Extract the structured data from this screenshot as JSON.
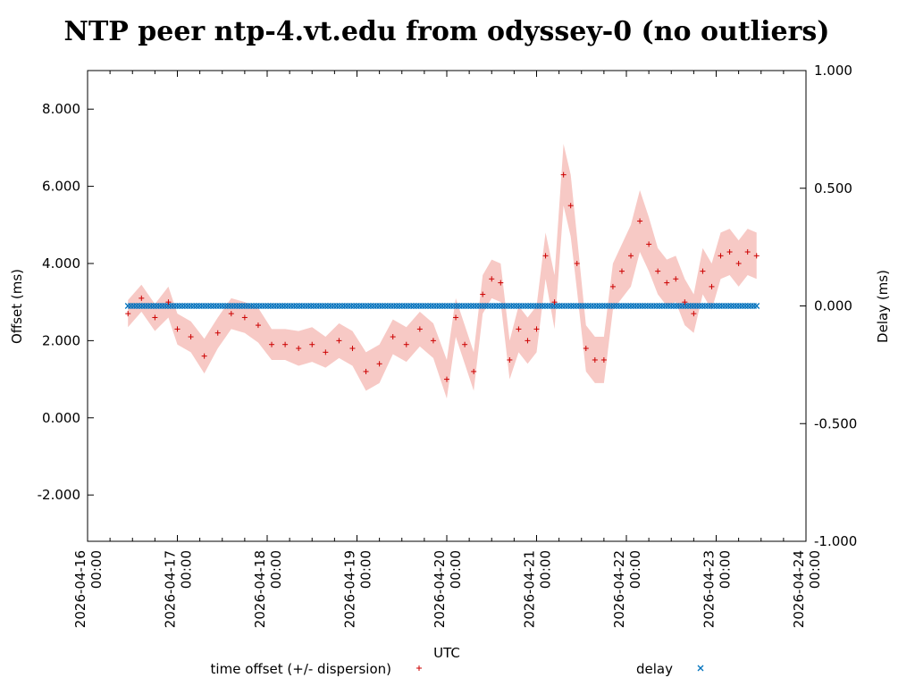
{
  "chart_data": {
    "type": "scatter",
    "title": "NTP peer ntp-4.vt.edu from odyssey-0 (no outliers)",
    "xlabel": "UTC",
    "ylabel": "Offset (ms)",
    "y2label": "Delay (ms)",
    "xlim_days": [
      0,
      8
    ],
    "x_ticks": [
      {
        "day": 0,
        "date": "2026-04-16",
        "time": "00:00"
      },
      {
        "day": 1,
        "date": "2026-04-17",
        "time": "00:00"
      },
      {
        "day": 2,
        "date": "2026-04-18",
        "time": "00:00"
      },
      {
        "day": 3,
        "date": "2026-04-19",
        "time": "00:00"
      },
      {
        "day": 4,
        "date": "2026-04-20",
        "time": "00:00"
      },
      {
        "day": 5,
        "date": "2026-04-21",
        "time": "00:00"
      },
      {
        "day": 6,
        "date": "2026-04-22",
        "time": "00:00"
      },
      {
        "day": 7,
        "date": "2026-04-23",
        "time": "00:00"
      },
      {
        "day": 8,
        "date": "2026-04-24",
        "time": "00:00"
      }
    ],
    "ylim": [
      -3.2,
      9.0
    ],
    "y_ticks": [
      -2,
      0,
      2,
      4,
      6,
      8
    ],
    "y_tick_labels": [
      "-2.000",
      "0.000",
      "2.000",
      "4.000",
      "6.000",
      "8.000"
    ],
    "y2lim": [
      -1.0,
      1.0
    ],
    "y2_ticks": [
      -1,
      -0.5,
      0,
      0.5,
      1
    ],
    "y2_tick_labels": [
      "-1.000",
      "-0.500",
      "0.000",
      "0.500",
      "1.000"
    ],
    "series": [
      {
        "name": "time offset (+/- dispersion)",
        "marker": "+",
        "color": "#cc0000",
        "band_color": "#f7c9c5",
        "x_days": [
          0.45,
          0.6,
          0.75,
          0.9,
          1.0,
          1.15,
          1.3,
          1.45,
          1.6,
          1.75,
          1.9,
          2.05,
          2.2,
          2.35,
          2.5,
          2.65,
          2.8,
          2.95,
          3.1,
          3.25,
          3.4,
          3.55,
          3.7,
          3.85,
          4.0,
          4.1,
          4.2,
          4.3,
          4.4,
          4.5,
          4.6,
          4.7,
          4.8,
          4.9,
          5.0,
          5.1,
          5.2,
          5.3,
          5.38,
          5.45,
          5.55,
          5.65,
          5.75,
          5.85,
          5.95,
          6.05,
          6.15,
          6.25,
          6.35,
          6.45,
          6.55,
          6.65,
          6.75,
          6.85,
          6.95,
          7.05,
          7.15,
          7.25,
          7.35,
          7.45
        ],
        "values": [
          2.7,
          3.1,
          2.6,
          3.0,
          2.3,
          2.1,
          1.6,
          2.2,
          2.7,
          2.6,
          2.4,
          1.9,
          1.9,
          1.8,
          1.9,
          1.7,
          2.0,
          1.8,
          1.2,
          1.4,
          2.1,
          1.9,
          2.3,
          2.0,
          1.0,
          2.6,
          1.9,
          1.2,
          3.2,
          3.6,
          3.5,
          1.5,
          2.3,
          2.0,
          2.3,
          4.2,
          3.0,
          6.3,
          5.5,
          4.0,
          1.8,
          1.5,
          1.5,
          3.4,
          3.8,
          4.2,
          5.1,
          4.5,
          3.8,
          3.5,
          3.6,
          3.0,
          2.7,
          3.8,
          3.4,
          4.2,
          4.3,
          4.0,
          4.3,
          4.2
        ],
        "dispersion": [
          0.35,
          0.35,
          0.35,
          0.4,
          0.4,
          0.4,
          0.45,
          0.4,
          0.4,
          0.4,
          0.45,
          0.4,
          0.4,
          0.45,
          0.45,
          0.4,
          0.45,
          0.45,
          0.5,
          0.5,
          0.45,
          0.45,
          0.45,
          0.45,
          0.5,
          0.5,
          0.5,
          0.5,
          0.5,
          0.5,
          0.5,
          0.5,
          0.6,
          0.6,
          0.6,
          0.6,
          0.7,
          0.8,
          0.8,
          0.7,
          0.6,
          0.6,
          0.6,
          0.6,
          0.7,
          0.8,
          0.8,
          0.7,
          0.6,
          0.6,
          0.6,
          0.6,
          0.5,
          0.6,
          0.6,
          0.6,
          0.6,
          0.6,
          0.6,
          0.6
        ]
      },
      {
        "name": "delay",
        "marker": "x",
        "color": "#0072bd",
        "axis": "y2",
        "x_start_day": 0.45,
        "x_end_day": 7.45,
        "value": 0.0
      }
    ],
    "legend_position": "bottom"
  }
}
